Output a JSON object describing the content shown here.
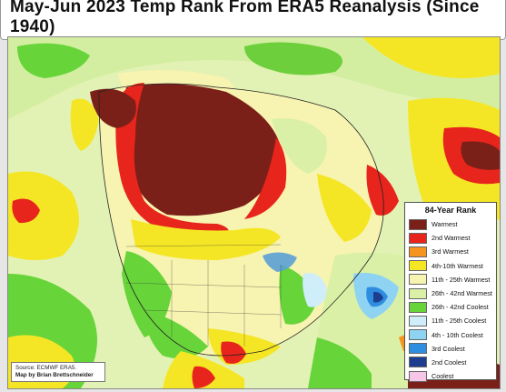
{
  "title": "May-Jun 2023 Temp Rank From ERA5 Reanalysis (Since 1940)",
  "legend": {
    "title": "84-Year Rank",
    "items": [
      {
        "label": "Warmest",
        "color": "#7b2018"
      },
      {
        "label": "2nd Warmest",
        "color": "#e8251c"
      },
      {
        "label": "3rd Warmest",
        "color": "#f7941d"
      },
      {
        "label": "4th-10th Warmest",
        "color": "#f5e625"
      },
      {
        "label": "11th - 25th Warmest",
        "color": "#f7f3b0"
      },
      {
        "label": "26th - 42nd Warmest",
        "color": "#d9f0a6"
      },
      {
        "label": "26th - 42nd Coolest",
        "color": "#67d43a"
      },
      {
        "label": "11th - 25th Coolest",
        "color": "#cfeefa"
      },
      {
        "label": "4th - 10th Coolest",
        "color": "#8fd3f2"
      },
      {
        "label": "3rd Coolest",
        "color": "#2f8de0"
      },
      {
        "label": "2nd Coolest",
        "color": "#1d3e8f"
      },
      {
        "label": "Coolest",
        "color": "#f7c6e6"
      }
    ]
  },
  "source": {
    "line1": "Source: ECMWF ERA5.",
    "line2": "Map by Brian Brettschneider"
  }
}
